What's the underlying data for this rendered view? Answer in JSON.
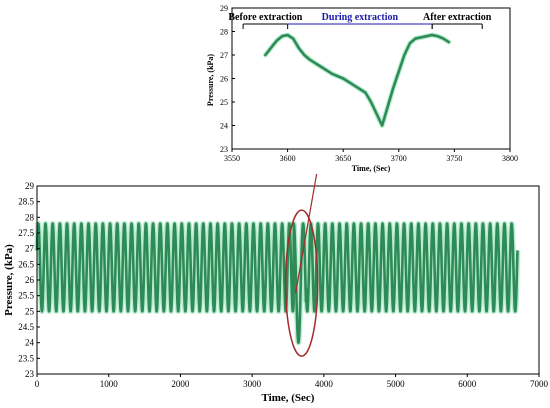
{
  "chart_data": [
    {
      "type": "line",
      "panel": "main",
      "xlabel": "Time, (Sec)",
      "ylabel": "Pressure, (kPa)",
      "xlim": [
        0,
        7000
      ],
      "ylim": [
        23,
        29
      ],
      "x_ticks": [
        "0",
        "1000",
        "2000",
        "3000",
        "4000",
        "5000",
        "6000",
        "7000"
      ],
      "y_ticks": [
        "23",
        "23.5",
        "24",
        "24.5",
        "25",
        "25.5",
        "26",
        "26.5",
        "27",
        "27.5",
        "28",
        "28.5",
        "29"
      ],
      "series": [
        {
          "color": "#2e8b57",
          "x_range": [
            0,
            6700
          ],
          "cycle_period_sec": 100,
          "y_min": 25.0,
          "y_max": 27.8,
          "anomaly": {
            "x_start": 3580,
            "x_end": 3750,
            "y_min": 24.0,
            "y_max": 27.8
          }
        }
      ],
      "grid": false,
      "highlight": {
        "type": "ellipse",
        "color": "#a52a2a",
        "center": [
          3690,
          25.9
        ]
      }
    },
    {
      "type": "line",
      "panel": "inset",
      "xlabel": "Time, (Sec)",
      "ylabel": "Pressure, (kPa)",
      "xlim": [
        3550,
        3800
      ],
      "ylim": [
        23,
        29
      ],
      "x_ticks": [
        "3550",
        "3600",
        "3650",
        "3700",
        "3750",
        "3800"
      ],
      "y_ticks": [
        "23",
        "24",
        "25",
        "26",
        "27",
        "28",
        "29"
      ],
      "series": [
        {
          "color": "#2e8b57",
          "x": [
            3580,
            3585,
            3590,
            3595,
            3600,
            3605,
            3610,
            3615,
            3620,
            3630,
            3640,
            3650,
            3660,
            3670,
            3675,
            3680,
            3685,
            3690,
            3695,
            3700,
            3705,
            3710,
            3715,
            3720,
            3725,
            3730,
            3735,
            3740,
            3745
          ],
          "y": [
            27.0,
            27.3,
            27.6,
            27.8,
            27.85,
            27.7,
            27.3,
            27.0,
            26.8,
            26.5,
            26.2,
            26.0,
            25.7,
            25.4,
            25.0,
            24.5,
            24.0,
            24.8,
            25.6,
            26.3,
            27.0,
            27.5,
            27.7,
            27.75,
            27.8,
            27.85,
            27.8,
            27.7,
            27.55
          ]
        }
      ],
      "annotations": [
        {
          "text": "Before extraction",
          "color": "#000000",
          "span": [
            3560,
            3600
          ]
        },
        {
          "text": "During extraction",
          "color": "#1a1aa8",
          "span": [
            3600,
            3730
          ]
        },
        {
          "text": "After extraction",
          "color": "#000000",
          "span": [
            3730,
            3775
          ]
        }
      ],
      "grid": false
    }
  ],
  "colors": {
    "series": "#2e8b57",
    "ellipse": "#a52a2a",
    "during": "#1a1aa8"
  }
}
